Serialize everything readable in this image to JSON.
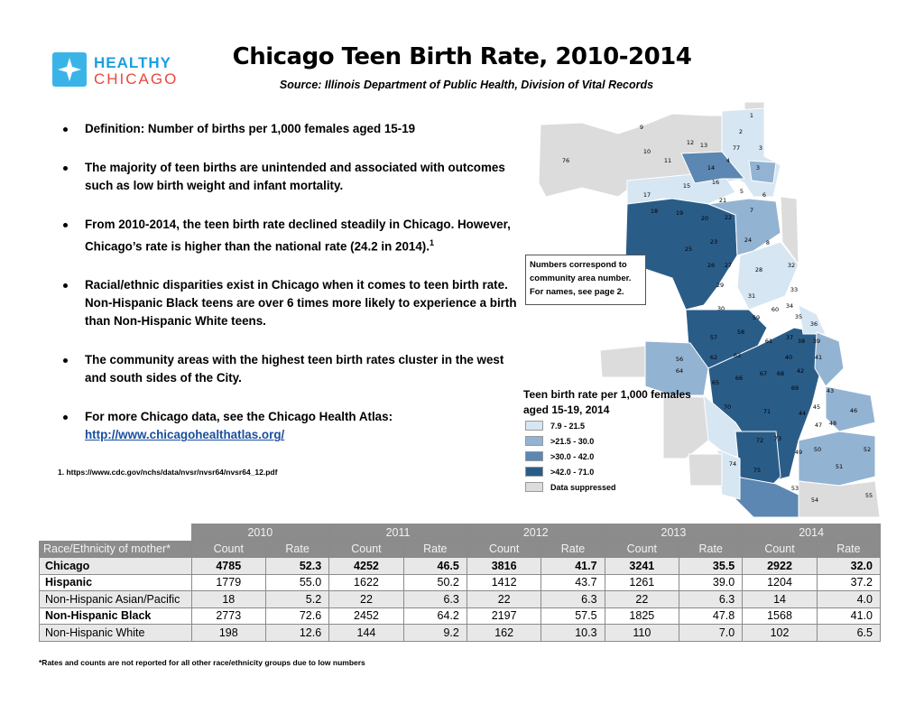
{
  "logo": {
    "line1": "HEALTHY",
    "line2": "CHICAGO"
  },
  "title": "Chicago Teen Birth Rate, 2010-2014",
  "subtitle": "Source:   Illinois Department of Public Health, Division of Vital Records",
  "bullets": [
    "Definition: Number of births per 1,000 females aged 15-19",
    "The majority of teen births are unintended and associated with outcomes such as low birth weight and infant mortality.",
    "From 2010-2014, the teen birth rate declined steadily in Chicago. However, Chicago’s rate is higher than the national rate (24.2 in 2014).",
    "Racial/ethnic disparities exist in Chicago when it comes to teen birth rate. Non-Hispanic Black teens are over 6 times more likely to experience a birth than Non-Hispanic White teens.",
    "The community areas with the highest teen birth rates cluster in the west and south sides of the City.",
    "For more Chicago data, see the Chicago Health Atlas:"
  ],
  "bullet3_sup": "1",
  "atlas_link": "http://www.chicagohealthatlas.org/",
  "footnote1": "1. https://www.cdc.gov/nchs/data/nvsr/nvsr64/nvsr64_12.pdf",
  "map": {
    "note": "Numbers correspond to community area number. For names, see page 2.",
    "legend_title": "Teen birth rate per 1,000 females aged 15-19, 2014",
    "legend": [
      {
        "label": "7.9 - 21.5",
        "color": "#d6e6f2"
      },
      {
        "label": ">21.5 - 30.0",
        "color": "#93b3d3"
      },
      {
        "label": ">30.0 - 42.0",
        "color": "#5b87b2"
      },
      {
        "label": ">42.0 - 71.0",
        "color": "#2a5c88"
      },
      {
        "label": "Data suppressed",
        "color": "#dcdcdc"
      }
    ]
  },
  "table": {
    "years": [
      "2010",
      "2011",
      "2012",
      "2013",
      "2014"
    ],
    "row_header": "Race/Ethnicity of mother*",
    "count_label": "Count",
    "rate_label": "Rate",
    "rows": [
      {
        "label": "Chicago",
        "values": [
          "4785",
          "52.3",
          "4252",
          "46.5",
          "3816",
          "41.7",
          "3241",
          "35.5",
          "2922",
          "32.0"
        ]
      },
      {
        "label": "Hispanic",
        "values": [
          "1779",
          "55.0",
          "1622",
          "50.2",
          "1412",
          "43.7",
          "1261",
          "39.0",
          "1204",
          "37.2"
        ]
      },
      {
        "label": "Non-Hispanic Asian/Pacific",
        "values": [
          "18",
          "5.2",
          "22",
          "6.3",
          "22",
          "6.3",
          "22",
          "6.3",
          "14",
          "4.0"
        ]
      },
      {
        "label": "Non-Hispanic Black",
        "values": [
          "2773",
          "72.6",
          "2452",
          "64.2",
          "2197",
          "57.5",
          "1825",
          "47.8",
          "1568",
          "41.0"
        ]
      },
      {
        "label": "Non-Hispanic White",
        "values": [
          "198",
          "12.6",
          "144",
          "9.2",
          "162",
          "10.3",
          "110",
          "7.0",
          "102",
          "6.5"
        ]
      }
    ]
  },
  "footnote2": "*Rates and counts are not reported for all other race/ethnicity groups due to low numbers"
}
